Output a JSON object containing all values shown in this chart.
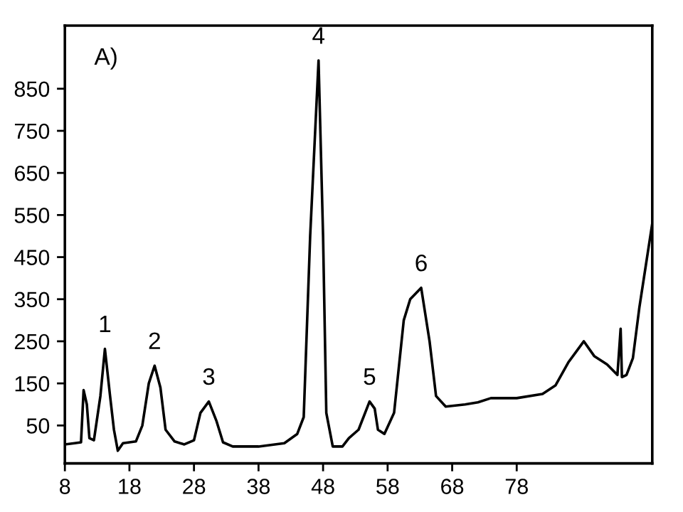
{
  "chart_data": {
    "type": "line",
    "x": [
      8,
      9.5,
      10.5,
      10.9,
      11.4,
      11.8,
      12.5,
      13.5,
      14.2,
      15,
      15.6,
      16.2,
      17,
      19,
      20,
      21,
      21.9,
      22.8,
      23.6,
      25,
      26.5,
      28,
      29,
      30.3,
      31.5,
      32.5,
      34,
      38,
      42,
      44,
      45,
      46,
      47.3,
      48,
      48.5,
      49.5,
      51,
      52,
      53.5,
      55.2,
      56,
      56.5,
      57.5,
      59,
      60.5,
      61.5,
      63.2,
      64.5,
      65.5,
      67,
      70,
      72,
      74,
      78,
      82,
      84,
      86,
      88.4,
      90,
      92,
      93.6,
      94.1,
      94.3,
      95,
      96,
      97,
      98,
      99
    ],
    "series": [
      {
        "color": "#000000",
        "values": [
          5,
          8,
          10,
          134,
          100,
          20,
          15,
          120,
          232,
          120,
          40,
          -10,
          8,
          12,
          50,
          150,
          192,
          140,
          40,
          12,
          5,
          15,
          80,
          107,
          60,
          10,
          0,
          0,
          8,
          30,
          70,
          500,
          917,
          500,
          80,
          0,
          0,
          20,
          40,
          107,
          90,
          40,
          30,
          80,
          300,
          350,
          377,
          250,
          120,
          95,
          100,
          105,
          115,
          115,
          125,
          145,
          200,
          250,
          215,
          195,
          170,
          280,
          165,
          170,
          210,
          330,
          430,
          530
        ]
      }
    ],
    "xlim": [
      8,
      99
    ],
    "ylim": [
      -40,
      1000
    ],
    "xticks": [
      8,
      18,
      28,
      38,
      48,
      58,
      68,
      78
    ],
    "yticks": [
      50,
      150,
      250,
      350,
      450,
      550,
      650,
      750,
      850
    ],
    "grid": false,
    "legend": false,
    "marker": "none",
    "line_style": "solid",
    "annotations": [
      "A)",
      {
        "text": "1",
        "x": 14.2,
        "y": 232
      },
      {
        "text": "2",
        "x": 21.9,
        "y": 192
      },
      {
        "text": "3",
        "x": 30.3,
        "y": 107
      },
      {
        "text": "4",
        "x": 47.3,
        "y": 917
      },
      {
        "text": "5",
        "x": 55.2,
        "y": 107
      },
      {
        "text": "6",
        "x": 63.2,
        "y": 377
      }
    ]
  }
}
